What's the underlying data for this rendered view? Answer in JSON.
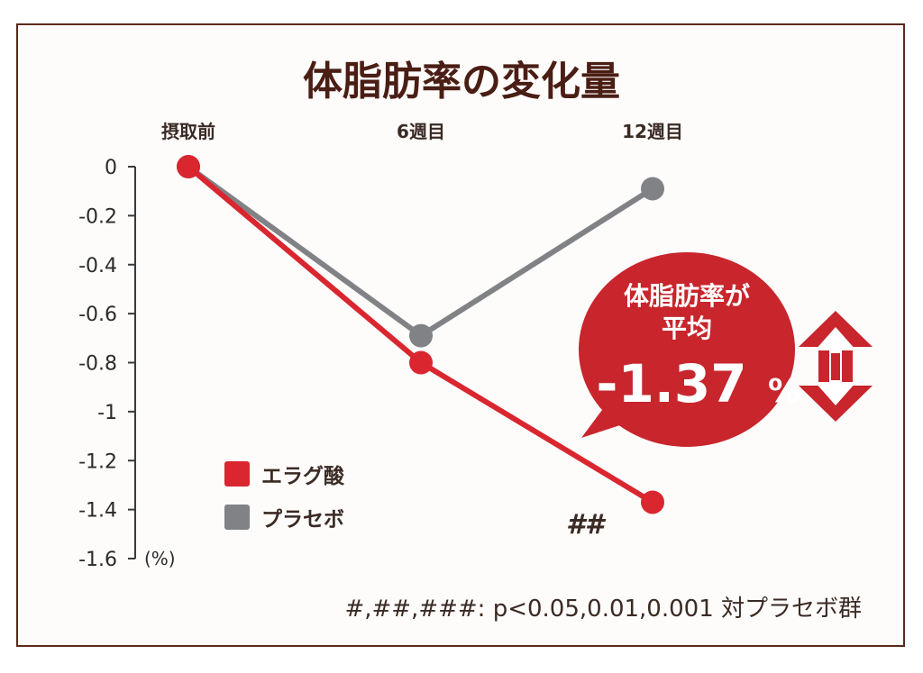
{
  "chart_data": {
    "type": "line",
    "title": "体脂肪率の変化量",
    "categories": [
      "摂取前",
      "6週目",
      "12週目"
    ],
    "unit_label": "(%)",
    "ylim": [
      -1.6,
      0
    ],
    "yticks": [
      "0",
      "-0.2",
      "-0.4",
      "-0.6",
      "-0.8",
      "-1",
      "-1.2",
      "-1.4",
      "-1.6"
    ],
    "series": [
      {
        "name": "エラグ酸",
        "values": [
          0,
          -0.8,
          -1.37
        ],
        "color": "#d9262f"
      },
      {
        "name": "プラセボ",
        "values": [
          0,
          -0.69,
          -0.09
        ],
        "color": "#808285"
      }
    ],
    "significance_mark": "##",
    "callout": {
      "line1": "体脂肪率が",
      "line2": "平均",
      "value": "-1.37",
      "percent": "%"
    },
    "footnote": "#,##,###: p<0.05,0.01,0.001 対プラセボ群"
  }
}
